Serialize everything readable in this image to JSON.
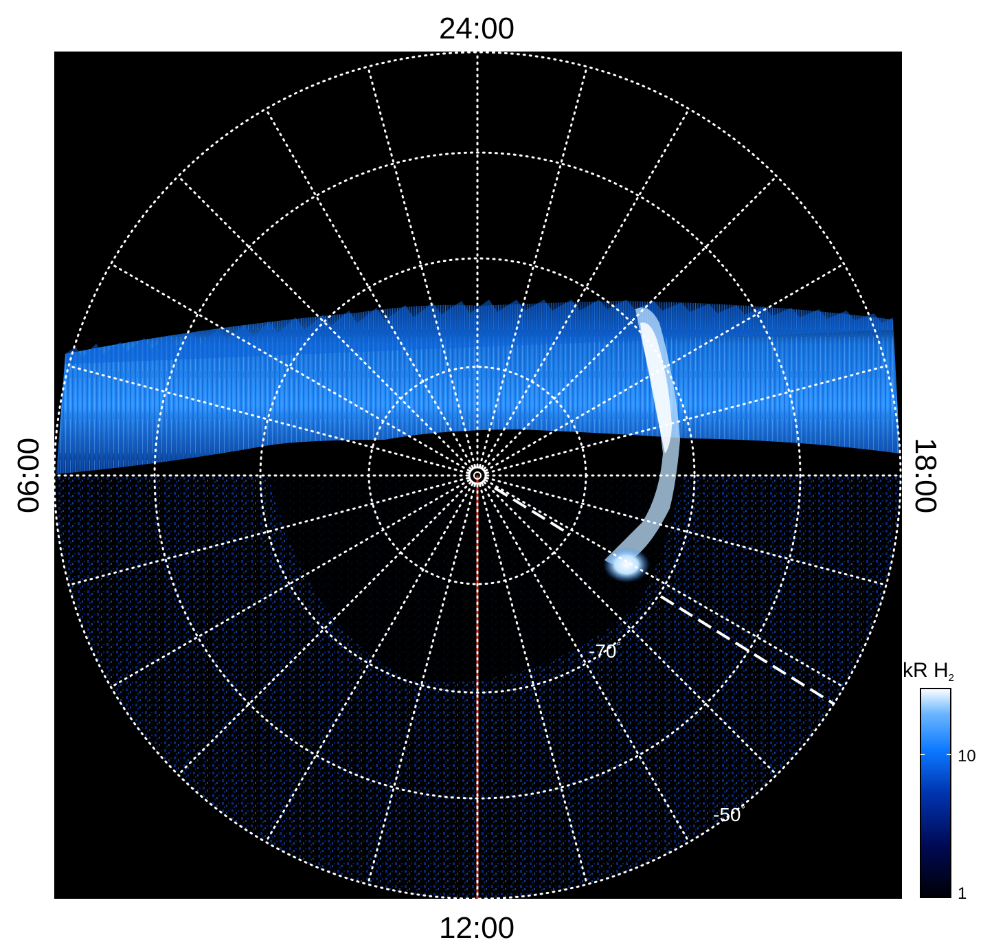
{
  "local_time_labels": {
    "top": "24:00",
    "bottom": "12:00",
    "left": "06:00",
    "right": "18:00"
  },
  "latitude_labels": {
    "inner": "-70",
    "outer": "-50",
    "degree_symbol": "°"
  },
  "colorbar": {
    "title": "kR H",
    "title_subscript": "2",
    "ticks": [
      "10",
      "1"
    ],
    "colors": [
      "#000005",
      "#000a55",
      "#0034b0",
      "#0a78ff",
      "#6cb6ff",
      "#ffffff"
    ]
  },
  "colors": {
    "background": "#000000",
    "grid": "#ffffff",
    "noon_meridian": "#e03010",
    "aurora_core": "#1a8cff",
    "aurora_bright": "#ffffff"
  }
}
